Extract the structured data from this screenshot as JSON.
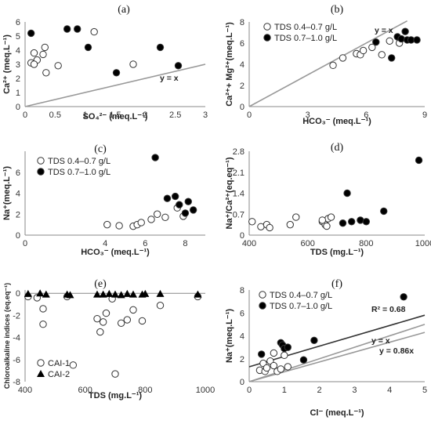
{
  "chart_data": [
    {
      "id": "a",
      "type": "scatter",
      "panel_label": "(a)",
      "xlabel": "SO₄²⁻ (meq.L⁻¹)",
      "ylabel": "Ca²⁺ (meq.L⁻¹)",
      "xlim": [
        0,
        3
      ],
      "ylim": [
        0,
        6
      ],
      "xticks": [
        "0",
        "0.5",
        "1",
        "1.5",
        "2",
        "2.5",
        "3"
      ],
      "yticks": [
        "0",
        "1",
        "2",
        "3",
        "4",
        "5",
        "6"
      ],
      "series": [
        {
          "marker": "open",
          "points": [
            [
              0.15,
              3.8
            ],
            [
              0.2,
              3.3
            ],
            [
              0.3,
              3.7
            ],
            [
              0.33,
              4.2
            ],
            [
              0.35,
              2.4
            ],
            [
              0.55,
              2.9
            ],
            [
              1.15,
              5.3
            ],
            [
              1.8,
              3.0
            ],
            [
              0.1,
              3.1
            ],
            [
              0.15,
              3.0
            ]
          ]
        },
        {
          "marker": "filled",
          "points": [
            [
              0.1,
              5.2
            ],
            [
              0.7,
              5.5
            ],
            [
              0.87,
              5.5
            ],
            [
              1.05,
              4.2
            ],
            [
              1.52,
              2.4
            ],
            [
              2.25,
              4.2
            ],
            [
              2.55,
              2.9
            ]
          ]
        }
      ],
      "lines": [
        {
          "label": "y = x",
          "from": [
            0,
            0
          ],
          "to": [
            3,
            3
          ]
        }
      ]
    },
    {
      "id": "b",
      "type": "scatter",
      "panel_label": "(b)",
      "xlabel": "HCO₃⁻ (meq.L⁻¹)",
      "ylabel": "Ca²⁺+ Mg²⁺(meq.L⁻¹)",
      "xlim": [
        0,
        9
      ],
      "ylim": [
        0,
        8
      ],
      "xticks": [
        "0",
        "3",
        "6",
        "9"
      ],
      "yticks": [
        "0",
        "2",
        "4",
        "6",
        "8"
      ],
      "legend": [
        "TDS 0.4–0.7 g/L",
        "TDS 0.7–1.0 g/L"
      ],
      "series": [
        {
          "marker": "open",
          "points": [
            [
              4.3,
              3.9
            ],
            [
              4.8,
              4.6
            ],
            [
              5.5,
              5.0
            ],
            [
              5.7,
              4.9
            ],
            [
              5.85,
              5.3
            ],
            [
              6.3,
              5.6
            ],
            [
              6.8,
              4.9
            ],
            [
              7.2,
              6.2
            ],
            [
              7.7,
              6.0
            ]
          ]
        },
        {
          "marker": "filled",
          "points": [
            [
              6.5,
              6.1
            ],
            [
              7.3,
              4.6
            ],
            [
              7.6,
              6.6
            ],
            [
              7.8,
              6.4
            ],
            [
              8.0,
              7.1
            ],
            [
              8.1,
              6.3
            ],
            [
              8.3,
              6.3
            ],
            [
              8.6,
              6.3
            ]
          ]
        }
      ],
      "lines": [
        {
          "label": "y = x",
          "from": [
            0,
            0
          ],
          "to": [
            8.1,
            8.1
          ]
        }
      ]
    },
    {
      "id": "c",
      "type": "scatter",
      "panel_label": "(c)",
      "xlabel": "HCO₃⁻ (meq.L⁻¹)",
      "ylabel": "Na⁺(meq.L⁻¹)",
      "xlim": [
        0,
        9
      ],
      "ylim": [
        0,
        8
      ],
      "xticks": [
        "0",
        "4",
        "6",
        "8"
      ],
      "yticks": [
        "0",
        "2",
        "4",
        "6"
      ],
      "legend": [
        "TDS 0.4–0.7 g/L",
        "TDS 0.7–1.0 g/L"
      ],
      "series": [
        {
          "marker": "open",
          "points": [
            [
              4.1,
              1.0
            ],
            [
              4.7,
              0.9
            ],
            [
              5.4,
              0.85
            ],
            [
              5.6,
              1.0
            ],
            [
              5.8,
              1.2
            ],
            [
              6.3,
              1.5
            ],
            [
              6.6,
              2.0
            ],
            [
              7.0,
              1.7
            ],
            [
              7.6,
              2.6
            ],
            [
              7.9,
              1.8
            ]
          ]
        },
        {
          "marker": "filled",
          "points": [
            [
              6.5,
              7.4
            ],
            [
              7.1,
              3.5
            ],
            [
              7.5,
              3.7
            ],
            [
              7.7,
              2.9
            ],
            [
              8.0,
              2.1
            ],
            [
              8.15,
              3.2
            ],
            [
              8.4,
              2.4
            ]
          ]
        }
      ]
    },
    {
      "id": "d",
      "type": "scatter",
      "panel_label": "(d)",
      "xlabel": "TDS (mg.L⁻¹)",
      "ylabel": "Na⁺/Ca²⁺(eq.eq⁻¹)",
      "xlim": [
        400,
        1000
      ],
      "ylim": [
        0,
        2.8
      ],
      "xticks": [
        "400",
        "600",
        "800",
        "1000"
      ],
      "yticks": [
        "0",
        "0.7",
        "1.4",
        "2.1",
        "2.8"
      ],
      "series": [
        {
          "marker": "open",
          "points": [
            [
              410,
              0.45
            ],
            [
              440,
              0.28
            ],
            [
              460,
              0.35
            ],
            [
              470,
              0.25
            ],
            [
              540,
              0.35
            ],
            [
              560,
              0.6
            ],
            [
              650,
              0.45
            ],
            [
              660,
              0.35
            ],
            [
              670,
              0.55
            ],
            [
              680,
              0.6
            ],
            [
              665,
              0.3
            ],
            [
              650,
              0.5
            ]
          ]
        },
        {
          "marker": "filled",
          "points": [
            [
              720,
              0.4
            ],
            [
              735,
              1.4
            ],
            [
              750,
              0.45
            ],
            [
              780,
              0.5
            ],
            [
              800,
              0.45
            ],
            [
              860,
              0.8
            ],
            [
              980,
              2.5
            ]
          ]
        }
      ]
    },
    {
      "id": "e",
      "type": "scatter",
      "panel_label": "(e)",
      "xlabel": "TDS (mg.L⁻¹)",
      "ylabel": "Chloroalkaline indices (eq.eq⁻¹)",
      "xlim": [
        400,
        1000
      ],
      "ylim": [
        -8,
        0.3
      ],
      "xticks": [
        "400",
        "600",
        "800",
        "1000"
      ],
      "yticks": [
        "0",
        "-2",
        "-4",
        "-6",
        "-8"
      ],
      "legend": [
        "CAI-1",
        "CAI-2"
      ],
      "series": [
        {
          "name": "CAI-1",
          "marker": "open",
          "points": [
            [
              410,
              -0.3
            ],
            [
              440,
              -0.4
            ],
            [
              460,
              -1.4
            ],
            [
              460,
              -2.8
            ],
            [
              540,
              -0.3
            ],
            [
              560,
              -6.5
            ],
            [
              640,
              -2.3
            ],
            [
              650,
              -3.5
            ],
            [
              660,
              -2.6
            ],
            [
              670,
              -1.8
            ],
            [
              690,
              -0.5
            ],
            [
              700,
              -7.3
            ],
            [
              720,
              -2.7
            ],
            [
              740,
              -2.4
            ],
            [
              760,
              -1.5
            ],
            [
              790,
              -2.5
            ],
            [
              850,
              -1.1
            ],
            [
              975,
              -0.3
            ]
          ]
        },
        {
          "name": "CAI-2",
          "marker": "triangle",
          "points": [
            [
              410,
              -0.05
            ],
            [
              450,
              0.0
            ],
            [
              470,
              -0.1
            ],
            [
              540,
              -0.1
            ],
            [
              550,
              -0.15
            ],
            [
              640,
              -0.1
            ],
            [
              660,
              -0.1
            ],
            [
              680,
              -0.05
            ],
            [
              700,
              -0.1
            ],
            [
              720,
              -0.15
            ],
            [
              740,
              -0.05
            ],
            [
              760,
              -0.1
            ],
            [
              790,
              -0.1
            ],
            [
              800,
              -0.05
            ],
            [
              850,
              -0.05
            ],
            [
              975,
              -0.1
            ]
          ]
        }
      ]
    },
    {
      "id": "f",
      "type": "scatter",
      "panel_label": "(f)",
      "xlabel": "Cl⁻ (meq.L⁻¹)",
      "ylabel": "Na⁺(meq.L⁻¹)",
      "xlim": [
        0,
        5
      ],
      "ylim": [
        0,
        8
      ],
      "xticks": [
        "0",
        "1",
        "2",
        "3",
        "4",
        "5"
      ],
      "yticks": [
        "0",
        "2",
        "4",
        "6",
        "8"
      ],
      "legend": [
        "TDS 0.4–0.7 g/L",
        "TDS 0.7–1.0 g/L"
      ],
      "series": [
        {
          "marker": "open",
          "points": [
            [
              0.3,
              1.0
            ],
            [
              0.4,
              1.6
            ],
            [
              0.45,
              0.9
            ],
            [
              0.5,
              1.2
            ],
            [
              0.6,
              1.8
            ],
            [
              0.7,
              2.5
            ],
            [
              0.7,
              1.4
            ],
            [
              0.8,
              0.9
            ],
            [
              0.9,
              1.1
            ],
            [
              1.0,
              2.3
            ],
            [
              1.1,
              1.3
            ]
          ]
        },
        {
          "marker": "filled",
          "points": [
            [
              0.35,
              2.4
            ],
            [
              0.9,
              3.4
            ],
            [
              0.95,
              3.2
            ],
            [
              1.0,
              2.9
            ],
            [
              1.1,
              3.0
            ],
            [
              1.55,
              1.9
            ],
            [
              1.85,
              3.6
            ],
            [
              4.4,
              7.4
            ]
          ]
        }
      ],
      "lines": [
        {
          "label": "R² = 0.68",
          "from": [
            0,
            1.3
          ],
          "to": [
            5,
            5.8
          ],
          "color": "#333333"
        },
        {
          "label": "y = x",
          "from": [
            0,
            0
          ],
          "to": [
            5,
            5
          ],
          "color": "#999999"
        },
        {
          "label": "y = 0.86x",
          "from": [
            0,
            0
          ],
          "to": [
            5,
            4.3
          ],
          "color": "#999999"
        }
      ]
    }
  ]
}
